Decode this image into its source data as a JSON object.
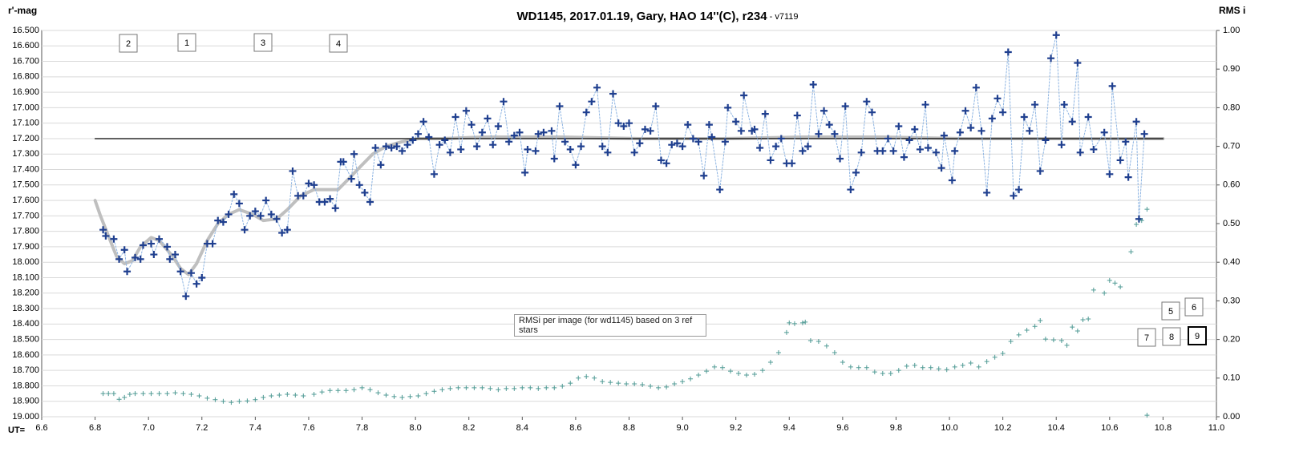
{
  "chart_data": {
    "type": "scatter",
    "title": "WD1145, 2017.01.19,  Gary, HAO 14''(C), r234",
    "subtitle": " - v7119",
    "y_label": "r'-mag",
    "y2_label": "RMS i",
    "x_label": "UT=",
    "xlim": [
      6.6,
      11.0
    ],
    "ylim": [
      16.5,
      19.0
    ],
    "y_inverted": true,
    "y2lim": [
      0,
      1
    ],
    "grid": true,
    "xticks": [
      6.6,
      6.8,
      {
        "value": 7,
        "label": "7.0"
      },
      7.2,
      7.4,
      7.6,
      7.8,
      {
        "value": 8,
        "label": "8.0"
      },
      8.2,
      8.4,
      8.6,
      8.8,
      {
        "value": 9,
        "label": "9.0"
      },
      9.2,
      9.4,
      9.6,
      9.8,
      {
        "value": 10,
        "label": "10.0"
      },
      10.2,
      10.4,
      10.6,
      10.8,
      {
        "value": 11,
        "label": "11.0"
      }
    ],
    "yticks": [
      {
        "value": 16.5,
        "label": "16.500"
      },
      {
        "value": 16.6,
        "label": "16.600"
      },
      {
        "value": 16.7,
        "label": "16.700"
      },
      {
        "value": 16.8,
        "label": "16.800"
      },
      {
        "value": 16.9,
        "label": "16.900"
      },
      {
        "value": 17,
        "label": "17.000"
      },
      {
        "value": 17.1,
        "label": "17.100"
      },
      {
        "value": 17.2,
        "label": "17.200"
      },
      {
        "value": 17.3,
        "label": "17.300"
      },
      {
        "value": 17.4,
        "label": "17.400"
      },
      {
        "value": 17.5,
        "label": "17.500"
      },
      {
        "value": 17.6,
        "label": "17.600"
      },
      {
        "value": 17.7,
        "label": "17.700"
      },
      {
        "value": 17.8,
        "label": "17.800"
      },
      {
        "value": 17.9,
        "label": "17.900"
      },
      {
        "value": 18,
        "label": "18.000"
      },
      {
        "value": 18.1,
        "label": "18.100"
      },
      {
        "value": 18.2,
        "label": "18.200"
      },
      {
        "value": 18.3,
        "label": "18.300"
      },
      {
        "value": 18.4,
        "label": "18.400"
      },
      {
        "value": 18.5,
        "label": "18.500"
      },
      {
        "value": 18.6,
        "label": "18.600"
      },
      {
        "value": 18.7,
        "label": "18.700"
      },
      {
        "value": 18.8,
        "label": "18.800"
      },
      {
        "value": 18.9,
        "label": "18.900"
      },
      {
        "value": 19,
        "label": "19.000"
      }
    ],
    "y2ticks": [
      {
        "value": 0,
        "label": "0.00"
      },
      {
        "value": 0.1,
        "label": "0.10"
      },
      {
        "value": 0.2,
        "label": "0.20"
      },
      {
        "value": 0.3,
        "label": "0.30"
      },
      {
        "value": 0.4,
        "label": "0.40"
      },
      {
        "value": 0.5,
        "label": "0.50"
      },
      {
        "value": 0.6,
        "label": "0.60"
      },
      {
        "value": 0.7,
        "label": "0.70"
      },
      {
        "value": 0.8,
        "label": "0.80"
      },
      {
        "value": 0.9,
        "label": "0.90"
      },
      {
        "value": 1,
        "label": "1.00"
      }
    ],
    "series": [
      {
        "color": "#bfbfbf",
        "line": "thick",
        "marker": null,
        "x": [
          6.8,
          6.82,
          6.85,
          6.88,
          6.91,
          6.94,
          6.97,
          7.01,
          7.04,
          7.09,
          7.12,
          7.15,
          7.18,
          7.22,
          7.26,
          7.3,
          7.34,
          7.39,
          7.43,
          7.48,
          7.52,
          7.57,
          7.62,
          7.66,
          7.71,
          7.75,
          7.8,
          7.84,
          7.89,
          7.95,
          8.01,
          8.1,
          8.25,
          8.55,
          8.85,
          9.15,
          9.45,
          9.75,
          10.05,
          10.35,
          10.8
        ],
        "values": [
          17.6,
          17.7,
          17.83,
          17.96,
          18.01,
          17.99,
          17.9,
          17.84,
          17.86,
          17.96,
          18.04,
          18.08,
          18.01,
          17.86,
          17.75,
          17.69,
          17.66,
          17.69,
          17.73,
          17.72,
          17.66,
          17.57,
          17.53,
          17.53,
          17.53,
          17.46,
          17.37,
          17.3,
          17.25,
          17.22,
          17.2,
          17.2,
          17.19,
          17.19,
          17.2,
          17.2,
          17.19,
          17.19,
          17.2,
          17.2,
          17.2
        ]
      },
      {
        "color": "#000000",
        "line": "solid",
        "marker": null,
        "x": [
          6.8,
          10.8
        ],
        "values": [
          17.2,
          17.2
        ]
      },
      {
        "color": "#1f3f8f",
        "line_color": "#8db4e2",
        "line": "dotted",
        "marker": "plus",
        "x": [
          6.83,
          6.84,
          6.87,
          6.89,
          6.91,
          6.92,
          6.95,
          6.97,
          6.98,
          7.01,
          7.02,
          7.04,
          7.07,
          7.08,
          7.1,
          7.12,
          7.14,
          7.16,
          7.18,
          7.2,
          7.22,
          7.24,
          7.26,
          7.28,
          7.3,
          7.32,
          7.34,
          7.36,
          7.38,
          7.4,
          7.42,
          7.44,
          7.46,
          7.48,
          7.5,
          7.52,
          7.54,
          7.56,
          7.58,
          7.6,
          7.62,
          7.64,
          7.66,
          7.68,
          7.7,
          7.72,
          7.73,
          7.76,
          7.77,
          7.79,
          7.81,
          7.83,
          7.85,
          7.87,
          7.89,
          7.91,
          7.93,
          7.95,
          7.97,
          7.99,
          8.01,
          8.03,
          8.05,
          8.07,
          8.09,
          8.11,
          8.13,
          8.15,
          8.17,
          8.19,
          8.21,
          8.23,
          8.25,
          8.27,
          8.29,
          8.31,
          8.33,
          8.35,
          8.37,
          8.39,
          8.41,
          8.42,
          8.45,
          8.46,
          8.48,
          8.51,
          8.52,
          8.54,
          8.56,
          8.58,
          8.6,
          8.62,
          8.64,
          8.66,
          8.68,
          8.7,
          8.72,
          8.74,
          8.76,
          8.78,
          8.8,
          8.82,
          8.84,
          8.86,
          8.88,
          8.9,
          8.92,
          8.94,
          8.96,
          8.98,
          9.0,
          9.02,
          9.04,
          9.06,
          9.08,
          9.1,
          9.11,
          9.14,
          9.16,
          9.17,
          9.2,
          9.22,
          9.23,
          9.26,
          9.27,
          9.29,
          9.31,
          9.33,
          9.35,
          9.37,
          9.39,
          9.41,
          9.43,
          9.45,
          9.47,
          9.49,
          9.51,
          9.53,
          9.55,
          9.57,
          9.59,
          9.61,
          9.63,
          9.65,
          9.67,
          9.69,
          9.71,
          9.73,
          9.75,
          9.77,
          9.79,
          9.81,
          9.83,
          9.85,
          9.87,
          9.89,
          9.91,
          9.92,
          9.95,
          9.97,
          9.98,
          10.01,
          10.02,
          10.04,
          10.06,
          10.08,
          10.1,
          10.12,
          10.14,
          10.16,
          10.18,
          10.2,
          10.22,
          10.24,
          10.26,
          10.28,
          10.3,
          10.32,
          10.34,
          10.36,
          10.38,
          10.4,
          10.42,
          10.43,
          10.46,
          10.48,
          10.49,
          10.52,
          10.54,
          10.58,
          10.6,
          10.61,
          10.64,
          10.66,
          10.67,
          10.7,
          10.71,
          10.73
        ],
        "values": [
          17.79,
          17.83,
          17.85,
          17.98,
          17.92,
          18.06,
          17.97,
          17.98,
          17.89,
          17.88,
          17.95,
          17.85,
          17.9,
          17.98,
          17.95,
          18.06,
          18.22,
          18.07,
          18.14,
          18.1,
          17.88,
          17.88,
          17.73,
          17.74,
          17.69,
          17.56,
          17.62,
          17.79,
          17.7,
          17.67,
          17.7,
          17.6,
          17.69,
          17.72,
          17.81,
          17.79,
          17.41,
          17.57,
          17.57,
          17.49,
          17.5,
          17.61,
          17.61,
          17.59,
          17.65,
          17.35,
          17.35,
          17.46,
          17.3,
          17.5,
          17.55,
          17.61,
          17.26,
          17.37,
          17.25,
          17.26,
          17.25,
          17.28,
          17.24,
          17.21,
          17.17,
          17.09,
          17.19,
          17.43,
          17.24,
          17.21,
          17.29,
          17.06,
          17.27,
          17.02,
          17.11,
          17.25,
          17.16,
          17.07,
          17.24,
          17.12,
          16.96,
          17.22,
          17.18,
          17.16,
          17.42,
          17.27,
          17.28,
          17.17,
          17.16,
          17.15,
          17.33,
          16.99,
          17.22,
          17.27,
          17.37,
          17.25,
          17.03,
          16.96,
          16.87,
          17.25,
          17.29,
          16.91,
          17.1,
          17.12,
          17.1,
          17.29,
          17.23,
          17.14,
          17.15,
          16.99,
          17.34,
          17.36,
          17.24,
          17.23,
          17.25,
          17.11,
          17.2,
          17.22,
          17.44,
          17.11,
          17.19,
          17.53,
          17.22,
          17.0,
          17.09,
          17.15,
          16.92,
          17.15,
          17.14,
          17.26,
          17.04,
          17.34,
          17.25,
          17.2,
          17.36,
          17.36,
          17.05,
          17.28,
          17.25,
          16.85,
          17.17,
          17.02,
          17.11,
          17.17,
          17.33,
          16.99,
          17.53,
          17.42,
          17.29,
          16.96,
          17.03,
          17.28,
          17.28,
          17.2,
          17.28,
          17.12,
          17.32,
          17.21,
          17.14,
          17.27,
          16.98,
          17.26,
          17.29,
          17.39,
          17.18,
          17.47,
          17.28,
          17.16,
          17.02,
          17.13,
          16.87,
          17.15,
          17.55,
          17.07,
          16.94,
          17.03,
          16.64,
          17.57,
          17.53,
          17.06,
          17.15,
          16.98,
          17.41,
          17.21,
          16.68,
          16.53,
          17.24,
          16.98,
          17.09,
          16.71,
          17.29,
          17.06,
          17.27,
          17.16,
          17.43,
          16.86,
          17.34,
          17.22,
          17.45,
          17.09,
          17.72,
          17.17
        ]
      },
      {
        "color": "#4f9a94",
        "line": null,
        "marker": "small-plus",
        "axis": "y2",
        "x": [
          6.83,
          6.85,
          6.87,
          6.89,
          6.91,
          6.93,
          6.95,
          6.98,
          7.01,
          7.04,
          7.07,
          7.1,
          7.13,
          7.16,
          7.19,
          7.22,
          7.25,
          7.28,
          7.31,
          7.34,
          7.37,
          7.4,
          7.43,
          7.46,
          7.49,
          7.52,
          7.55,
          7.58,
          7.62,
          7.65,
          7.68,
          7.71,
          7.74,
          7.77,
          7.8,
          7.83,
          7.86,
          7.89,
          7.92,
          7.95,
          7.98,
          8.01,
          8.04,
          8.07,
          8.1,
          8.13,
          8.16,
          8.19,
          8.22,
          8.25,
          8.28,
          8.31,
          8.34,
          8.37,
          8.4,
          8.43,
          8.46,
          8.49,
          8.52,
          8.55,
          8.58,
          8.61,
          8.64,
          8.67,
          8.7,
          8.73,
          8.76,
          8.79,
          8.82,
          8.85,
          8.88,
          8.91,
          8.94,
          8.97,
          9.0,
          9.03,
          9.06,
          9.09,
          9.12,
          9.15,
          9.18,
          9.21,
          9.24,
          9.27,
          9.3,
          9.33,
          9.36,
          9.39,
          9.4,
          9.42,
          9.45,
          9.46,
          9.48,
          9.51,
          9.54,
          9.57,
          9.6,
          9.63,
          9.66,
          9.69,
          9.72,
          9.75,
          9.78,
          9.81,
          9.84,
          9.87,
          9.9,
          9.93,
          9.96,
          9.99,
          10.02,
          10.05,
          10.08,
          10.11,
          10.14,
          10.17,
          10.2,
          10.23,
          10.26,
          10.29,
          10.32,
          10.34,
          10.36,
          10.39,
          10.42,
          10.44,
          10.46,
          10.48,
          10.5,
          10.52,
          10.54,
          10.58,
          10.6,
          10.62,
          10.64,
          10.68,
          10.7,
          10.72,
          10.74,
          10.74
        ],
        "values": [
          0.06,
          0.06,
          0.06,
          0.045,
          0.05,
          0.058,
          0.06,
          0.06,
          0.06,
          0.06,
          0.06,
          0.062,
          0.06,
          0.058,
          0.054,
          0.048,
          0.044,
          0.04,
          0.037,
          0.04,
          0.041,
          0.044,
          0.05,
          0.054,
          0.056,
          0.058,
          0.056,
          0.054,
          0.058,
          0.064,
          0.068,
          0.068,
          0.068,
          0.07,
          0.075,
          0.07,
          0.062,
          0.056,
          0.052,
          0.05,
          0.052,
          0.054,
          0.06,
          0.066,
          0.07,
          0.073,
          0.075,
          0.075,
          0.075,
          0.075,
          0.073,
          0.07,
          0.073,
          0.073,
          0.075,
          0.075,
          0.073,
          0.075,
          0.075,
          0.079,
          0.087,
          0.1,
          0.104,
          0.1,
          0.091,
          0.089,
          0.087,
          0.085,
          0.085,
          0.083,
          0.079,
          0.075,
          0.077,
          0.085,
          0.091,
          0.098,
          0.108,
          0.118,
          0.129,
          0.127,
          0.118,
          0.112,
          0.108,
          0.11,
          0.12,
          0.141,
          0.166,
          0.218,
          0.243,
          0.241,
          0.243,
          0.245,
          0.197,
          0.195,
          0.183,
          0.166,
          0.141,
          0.129,
          0.127,
          0.127,
          0.116,
          0.112,
          0.112,
          0.12,
          0.131,
          0.133,
          0.127,
          0.127,
          0.124,
          0.122,
          0.129,
          0.133,
          0.139,
          0.129,
          0.143,
          0.154,
          0.164,
          0.195,
          0.212,
          0.224,
          0.234,
          0.249,
          0.201,
          0.199,
          0.197,
          0.185,
          0.232,
          0.222,
          0.251,
          0.253,
          0.328,
          0.32,
          0.353,
          0.346,
          0.336,
          0.427,
          0.498,
          0.508,
          0.537,
          0.004
        ]
      }
    ],
    "annotations": [
      "2",
      "1",
      "3",
      "4",
      "5",
      "6",
      "7",
      "8",
      "9",
      "RMSi per image (for wd1145) based on 3 ref stars"
    ]
  }
}
